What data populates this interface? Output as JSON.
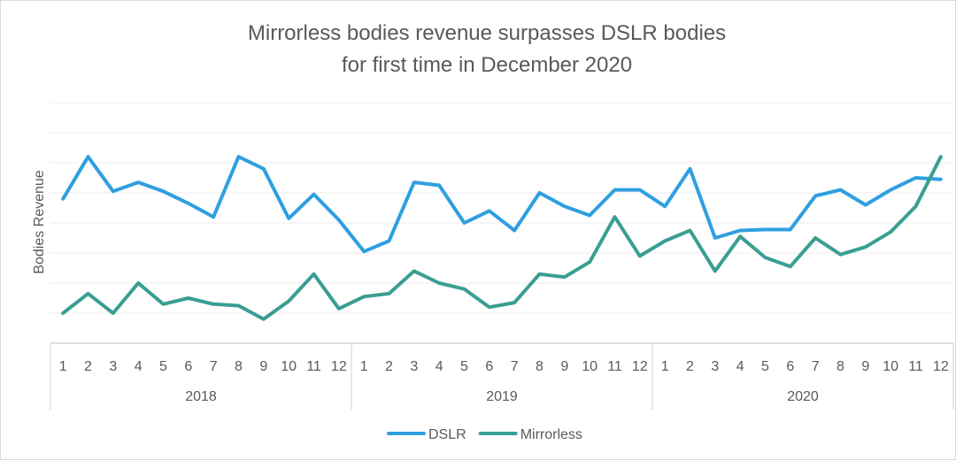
{
  "chart_data": {
    "type": "line",
    "title_line1": "Mirrorless bodies revenue surpasses DSLR bodies",
    "title_line2": "for first time in December 2020",
    "ylabel": "Bodies Revenue",
    "xlabel": "",
    "grid": true,
    "legend_position": "bottom",
    "years": [
      "2018",
      "2019",
      "2020"
    ],
    "months": [
      "1",
      "2",
      "3",
      "4",
      "5",
      "6",
      "7",
      "8",
      "9",
      "10",
      "11",
      "12"
    ],
    "ylim": [
      0,
      8
    ],
    "series": [
      {
        "name": "DSLR",
        "color": "#2f9fe0",
        "values": [
          4.8,
          6.2,
          5.05,
          5.35,
          5.05,
          4.65,
          4.2,
          6.2,
          5.8,
          4.15,
          4.95,
          4.1,
          3.05,
          3.4,
          5.35,
          5.25,
          4.0,
          4.4,
          3.75,
          5.0,
          4.55,
          4.25,
          5.1,
          5.1,
          4.55,
          5.8,
          3.5,
          3.75,
          3.78,
          3.78,
          4.9,
          5.1,
          4.6,
          5.1,
          5.5,
          5.45
        ]
      },
      {
        "name": "Mirrorless",
        "color": "#3a9e92",
        "values": [
          1.0,
          1.65,
          1.0,
          2.0,
          1.3,
          1.5,
          1.3,
          1.25,
          0.8,
          1.4,
          2.3,
          1.15,
          1.55,
          1.65,
          2.4,
          2.0,
          1.8,
          1.2,
          1.35,
          2.3,
          2.2,
          2.7,
          4.2,
          2.9,
          3.4,
          3.75,
          2.4,
          3.55,
          2.85,
          2.55,
          3.5,
          2.95,
          3.2,
          3.7,
          4.55,
          6.2
        ]
      }
    ]
  }
}
